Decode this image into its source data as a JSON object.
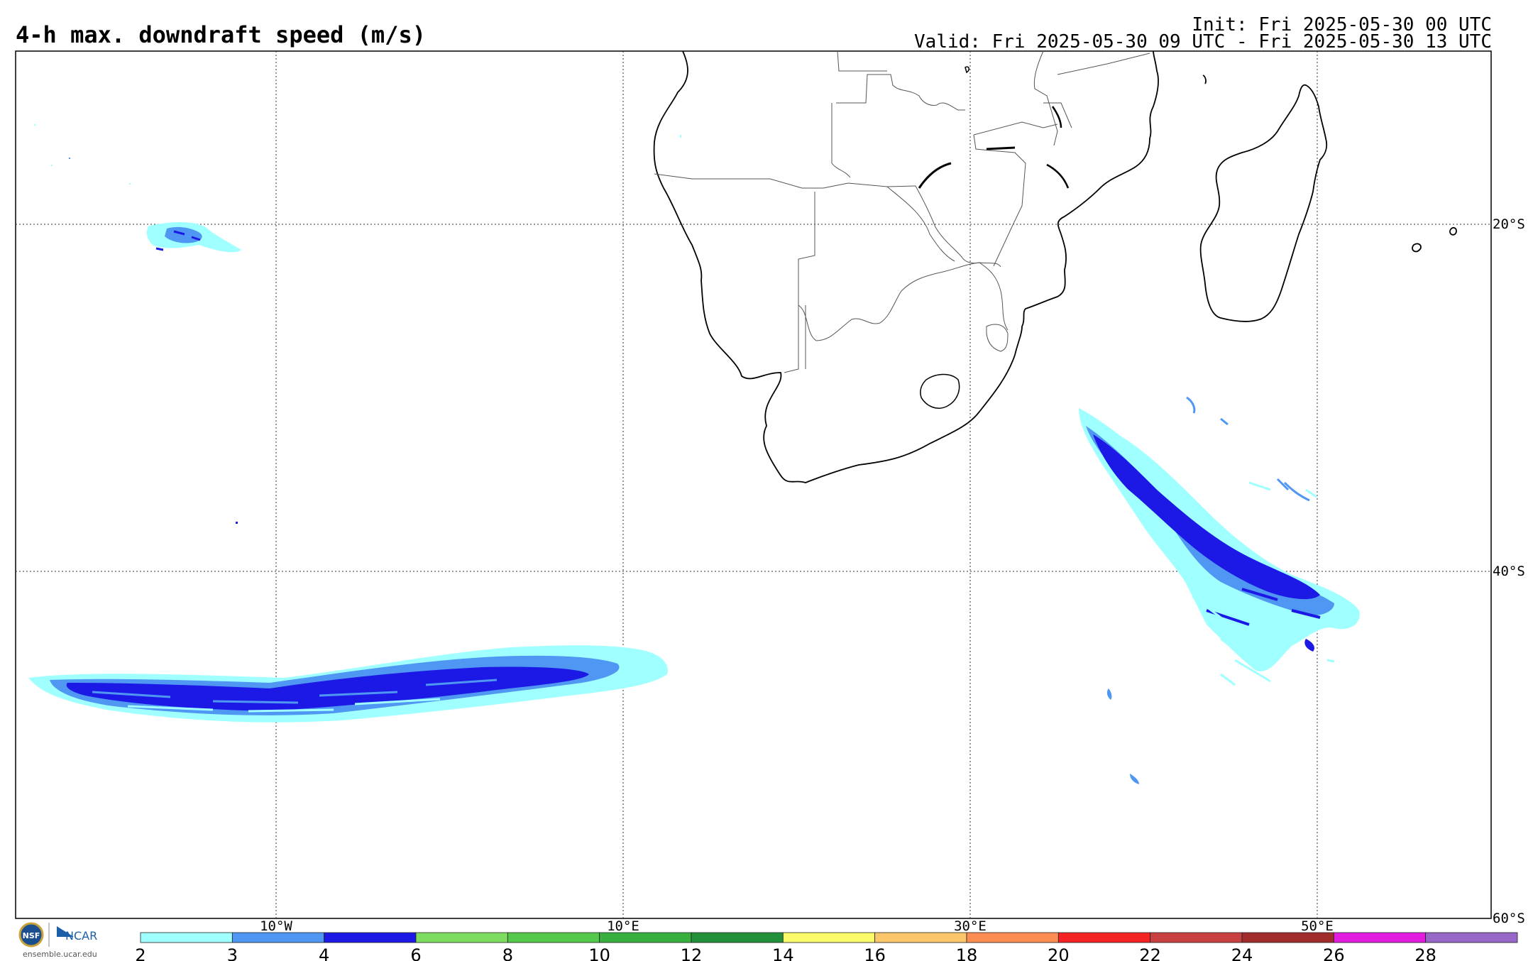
{
  "header": {
    "title": "4-h max. downdraft speed (m/s)",
    "init": "Init: Fri 2025-05-30 00 UTC",
    "valid": "Valid: Fri 2025-05-30 09 UTC - Fri 2025-05-30 13 UTC"
  },
  "map": {
    "lon_labels": [
      "10°W",
      "10°E",
      "30°E",
      "50°E"
    ],
    "lat_labels": [
      "20°S",
      "40°S",
      "60°S"
    ],
    "grid": "dotted"
  },
  "colorbar": {
    "ticks": [
      "2",
      "3",
      "4",
      "6",
      "8",
      "10",
      "12",
      "14",
      "16",
      "18",
      "20",
      "22",
      "24",
      "26",
      "28"
    ],
    "colors": [
      "#a0ffff",
      "#4f97f2",
      "#1c19e6",
      "#7edd61",
      "#53c84a",
      "#37b040",
      "#23913a",
      "#fbfb6a",
      "#fcc66b",
      "#fc8d52",
      "#f52424",
      "#c94041",
      "#a02d2c",
      "#e31de0",
      "#9868c9"
    ]
  },
  "footer": {
    "org": "NCAR",
    "url": "ensemble.ucar.edu"
  },
  "legend_logo": {
    "nsf_text": "NSF"
  }
}
